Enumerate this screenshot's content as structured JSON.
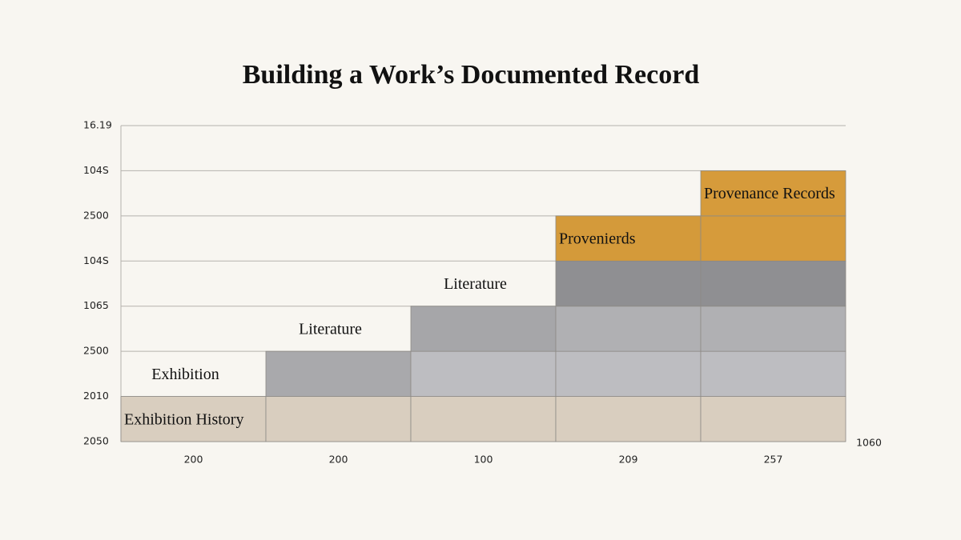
{
  "title": "Building a Work’s Documented Record",
  "y_labels": [
    "16.19",
    "104S",
    "2500",
    "104S",
    "1065",
    "2500",
    "2010",
    "2050"
  ],
  "x_labels": [
    "200",
    "200",
    "100",
    "209",
    "257"
  ],
  "corner_label": "1060",
  "columns": [
    {
      "label": "Exhibition",
      "segments": [
        {
          "color": "#d9cebf",
          "label": "Exhibition History"
        }
      ]
    },
    {
      "label": "Literature",
      "segments": [
        {
          "color": "#d9cebf"
        },
        {
          "color": "#a9a9ac"
        }
      ]
    },
    {
      "label": "Literature",
      "segments": [
        {
          "color": "#d9cebf"
        },
        {
          "color": "#bdbdc1"
        },
        {
          "color": "#a6a6a9"
        }
      ]
    },
    {
      "segments": [
        {
          "color": "#d9cebf"
        },
        {
          "color": "#bdbdc1"
        },
        {
          "color": "#b0b0b3"
        },
        {
          "color": "#8f8f92"
        },
        {
          "color": "#d49a3a",
          "label": "Provenierds"
        }
      ]
    },
    {
      "segments": [
        {
          "color": "#d9cebf"
        },
        {
          "color": "#bdbdc1"
        },
        {
          "color": "#b0b0b3"
        },
        {
          "color": "#8f8f92"
        },
        {
          "color": "#d69b3b"
        },
        {
          "color": "#d69b3b",
          "label": "Provenance Records"
        }
      ]
    }
  ]
}
